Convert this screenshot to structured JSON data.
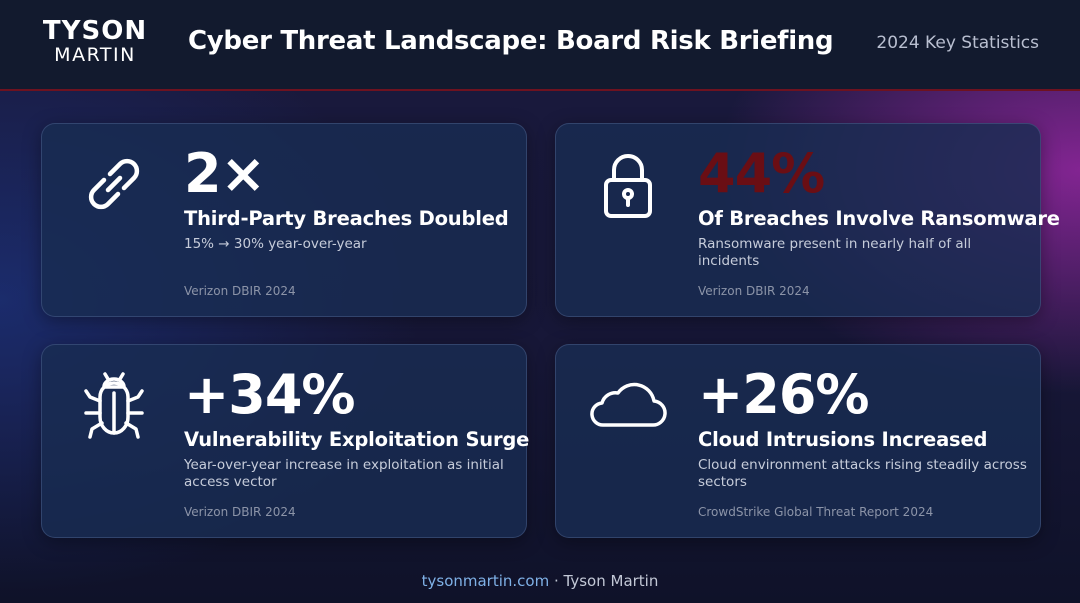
{
  "header": {
    "logo_top": "TYSON",
    "logo_bottom": "MARTIN",
    "title": "Cyber Threat Landscape: Board Risk Briefing",
    "subtitle": "2024 Key Statistics"
  },
  "cards": [
    {
      "icon": "link-icon",
      "stat": "2×",
      "headline": "Third-Party Breaches Doubled",
      "description": "15% → 30% year-over-year",
      "source": "Verizon DBIR 2024"
    },
    {
      "icon": "padlock-icon",
      "stat": "44%",
      "stat_color": "#6a0e14",
      "headline": "Of Breaches Involve Ransomware",
      "description": "Ransomware present in nearly half of all incidents",
      "source": "Verizon DBIR 2024"
    },
    {
      "icon": "bug-icon",
      "stat": "+34%",
      "headline": "Vulnerability Exploitation Surge",
      "description": "Year-over-year increase in exploitation as initial access vector",
      "source": "Verizon DBIR 2024"
    },
    {
      "icon": "cloud-icon",
      "stat": "+26%",
      "headline": "Cloud Intrusions Increased",
      "description": "Cloud environment attacks rising steadily across sectors",
      "source": "CrowdStrike Global Threat Report 2024"
    }
  ],
  "footer": {
    "link": "tysonmartin.com",
    "separator": " · ",
    "author": "Tyson Martin"
  },
  "colors": {
    "header_bg": "#121a2e",
    "accent_red": "#6e1220",
    "card_bg": "#182c52",
    "link": "#7fb0e6"
  }
}
